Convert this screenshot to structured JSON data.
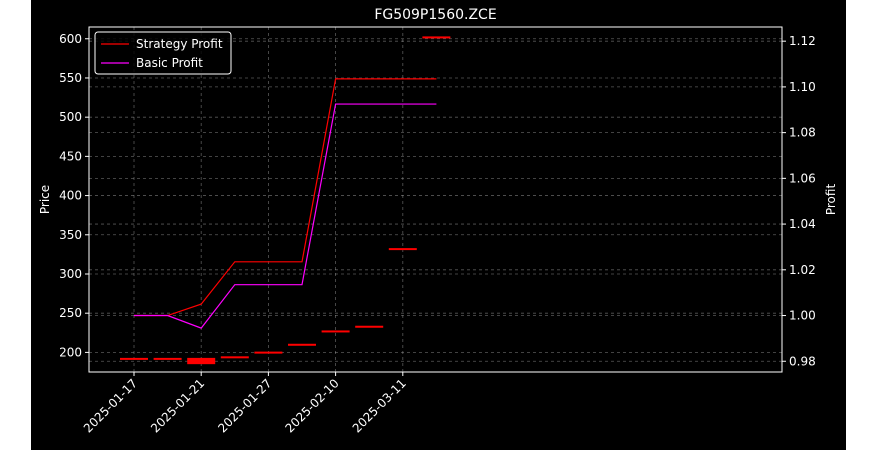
{
  "chart_data": {
    "type": "line",
    "title": "FG509P1560.ZCE",
    "ylabel_left": "Price",
    "ylabel_right": "Profit",
    "xlabel": "",
    "background": "#000000",
    "foreground": "#ffffff",
    "grid": true,
    "legend_position": "upper-left",
    "x_tick_labels": [
      "2025-01-17",
      "2025-01-21",
      "2025-01-27",
      "2025-02-10",
      "2025-03-11"
    ],
    "x_count": 10,
    "x_tick_indices": [
      0,
      2,
      4,
      6,
      8
    ],
    "ylim_left": [
      175,
      615
    ],
    "yticks_left": [
      200,
      250,
      300,
      350,
      400,
      450,
      500,
      550,
      600
    ],
    "ylim_right": [
      0.9753,
      1.1262
    ],
    "yticks_right": [
      0.98,
      1.0,
      1.02,
      1.04,
      1.06,
      1.08,
      1.1,
      1.12
    ],
    "price_series": {
      "color": "#ff0000",
      "points": [
        {
          "i": 0,
          "open": 192,
          "close": 193
        },
        {
          "i": 1,
          "open": 192,
          "close": 193
        },
        {
          "i": 2,
          "open": 193,
          "close": 185
        },
        {
          "i": 3,
          "open": 194,
          "close": 195
        },
        {
          "i": 4,
          "open": 200,
          "close": 201
        },
        {
          "i": 5,
          "open": 210,
          "close": 211
        },
        {
          "i": 6,
          "open": 227,
          "close": 228
        },
        {
          "i": 7,
          "open": 233,
          "close": 234
        },
        {
          "i": 8,
          "open": 332,
          "close": 333
        },
        {
          "i": 9,
          "open": 601,
          "close": 603
        }
      ]
    },
    "series": [
      {
        "name": "Strategy Profit",
        "color": "#ff0000",
        "values": [
          1.0,
          1.0,
          1.005,
          1.0235,
          1.0235,
          1.0235,
          1.1035,
          1.1035,
          1.1035,
          1.1035
        ]
      },
      {
        "name": "Basic Profit",
        "color": "#ff00ff",
        "values": [
          1.0,
          1.0,
          0.9945,
          1.0135,
          1.0135,
          1.0135,
          1.0925,
          1.0925,
          1.0925,
          1.0925
        ]
      }
    ]
  }
}
